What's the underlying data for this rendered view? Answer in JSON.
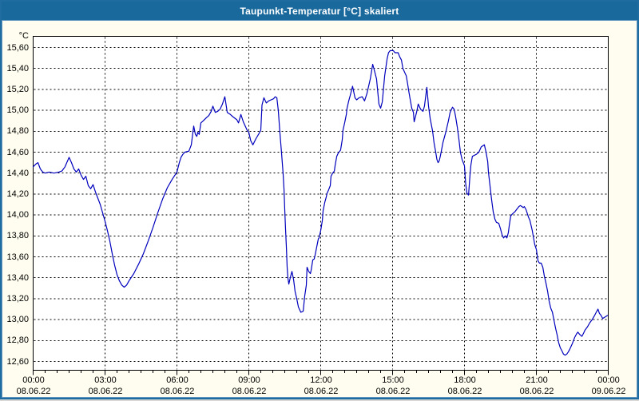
{
  "window": {
    "title": "Taupunkt-Temperatur [°C] skaliert"
  },
  "colors": {
    "titlebar": "#19699d",
    "title_text": "#ffffff",
    "frame": "#1f6da0",
    "background": "#fffdef",
    "plot_background": "#ffffff",
    "grid": "#000000",
    "line": "#0000bd"
  },
  "chart_data": {
    "type": "line",
    "title": "Taupunkt-Temperatur [°C] skaliert",
    "ylabel_unit": "°C",
    "ylim": [
      12.6,
      15.6
    ],
    "ytick_step": 0.2,
    "grid": "dashed",
    "legend": "none",
    "ytick_labels": [
      "15,60",
      "15,40",
      "15,20",
      "15,00",
      "14,80",
      "14,60",
      "14,40",
      "14,20",
      "14,00",
      "13,80",
      "13,60",
      "13,40",
      "13,20",
      "13,00",
      "12,80",
      "12,60"
    ],
    "x_axis": {
      "range_hours": [
        0,
        24
      ],
      "major_tick_hours": 3,
      "minor_tick_hours": 0.5
    },
    "xtick_labels": [
      {
        "hour": 0,
        "time": "00:00",
        "date": "08.06.22"
      },
      {
        "hour": 3,
        "time": "03:00",
        "date": "08.06.22"
      },
      {
        "hour": 6,
        "time": "06:00",
        "date": "08.06.22"
      },
      {
        "hour": 9,
        "time": "09:00",
        "date": "08.06.22"
      },
      {
        "hour": 12,
        "time": "12:00",
        "date": "08.06.22"
      },
      {
        "hour": 15,
        "time": "15:00",
        "date": "08.06.22"
      },
      {
        "hour": 18,
        "time": "18:00",
        "date": "08.06.22"
      },
      {
        "hour": 21,
        "time": "21:00",
        "date": "08.06.22"
      },
      {
        "hour": 24,
        "time": "00:00",
        "date": "09.06.22"
      }
    ],
    "series": [
      {
        "name": "Taupunkt-Temperatur",
        "points": [
          [
            0,
            14.46
          ],
          [
            0.13,
            14.49
          ],
          [
            0.2,
            14.5
          ],
          [
            0.3,
            14.44
          ],
          [
            0.4,
            14.41
          ],
          [
            0.5,
            14.4
          ],
          [
            0.67,
            14.41
          ],
          [
            0.87,
            14.4
          ],
          [
            1.07,
            14.41
          ],
          [
            1.2,
            14.42
          ],
          [
            1.33,
            14.46
          ],
          [
            1.5,
            14.55
          ],
          [
            1.6,
            14.5
          ],
          [
            1.7,
            14.44
          ],
          [
            1.8,
            14.41
          ],
          [
            1.9,
            14.44
          ],
          [
            2,
            14.38
          ],
          [
            2.1,
            14.34
          ],
          [
            2.2,
            14.37
          ],
          [
            2.3,
            14.28
          ],
          [
            2.4,
            14.25
          ],
          [
            2.5,
            14.29
          ],
          [
            2.6,
            14.22
          ],
          [
            2.7,
            14.16
          ],
          [
            2.8,
            14.1
          ],
          [
            2.9,
            14.02
          ],
          [
            3,
            13.94
          ],
          [
            3.1,
            13.85
          ],
          [
            3.2,
            13.75
          ],
          [
            3.3,
            13.63
          ],
          [
            3.4,
            13.52
          ],
          [
            3.5,
            13.43
          ],
          [
            3.6,
            13.37
          ],
          [
            3.7,
            13.33
          ],
          [
            3.8,
            13.31
          ],
          [
            3.9,
            13.33
          ],
          [
            4,
            13.37
          ],
          [
            4.2,
            13.44
          ],
          [
            4.4,
            13.53
          ],
          [
            4.6,
            13.63
          ],
          [
            4.8,
            13.75
          ],
          [
            5,
            13.88
          ],
          [
            5.2,
            14.02
          ],
          [
            5.4,
            14.15
          ],
          [
            5.6,
            14.26
          ],
          [
            5.8,
            14.34
          ],
          [
            6,
            14.41
          ],
          [
            6.1,
            14.5
          ],
          [
            6.17,
            14.55
          ],
          [
            6.25,
            14.58
          ],
          [
            6.33,
            14.6
          ],
          [
            6.5,
            14.61
          ],
          [
            6.6,
            14.67
          ],
          [
            6.7,
            14.85
          ],
          [
            6.77,
            14.77
          ],
          [
            6.83,
            14.75
          ],
          [
            6.87,
            14.79
          ],
          [
            6.93,
            14.77
          ],
          [
            7,
            14.88
          ],
          [
            7.1,
            14.9
          ],
          [
            7.23,
            14.93
          ],
          [
            7.33,
            14.95
          ],
          [
            7.43,
            14.99
          ],
          [
            7.5,
            15.04
          ],
          [
            7.6,
            14.98
          ],
          [
            7.7,
            14.99
          ],
          [
            7.8,
            15.01
          ],
          [
            7.9,
            15.06
          ],
          [
            8,
            15.13
          ],
          [
            8.1,
            14.98
          ],
          [
            8.23,
            14.96
          ],
          [
            8.33,
            14.94
          ],
          [
            8.5,
            14.91
          ],
          [
            8.57,
            14.88
          ],
          [
            8.67,
            14.96
          ],
          [
            8.77,
            14.89
          ],
          [
            8.93,
            14.81
          ],
          [
            9,
            14.79
          ],
          [
            9.08,
            14.71
          ],
          [
            9.17,
            14.67
          ],
          [
            9.3,
            14.73
          ],
          [
            9.43,
            14.78
          ],
          [
            9.5,
            14.81
          ],
          [
            9.55,
            15.05
          ],
          [
            9.63,
            15.12
          ],
          [
            9.73,
            15.07
          ],
          [
            9.83,
            15.09
          ],
          [
            9.93,
            15.1
          ],
          [
            10.03,
            15.11
          ],
          [
            10.1,
            15.13
          ],
          [
            10.17,
            15.12
          ],
          [
            10.23,
            15
          ],
          [
            10.3,
            14.78
          ],
          [
            10.37,
            14.58
          ],
          [
            10.43,
            14.4
          ],
          [
            10.47,
            14.24
          ],
          [
            10.5,
            14.05
          ],
          [
            10.53,
            13.88
          ],
          [
            10.57,
            13.68
          ],
          [
            10.6,
            13.5
          ],
          [
            10.63,
            13.4
          ],
          [
            10.67,
            13.34
          ],
          [
            10.73,
            13.4
          ],
          [
            10.8,
            13.46
          ],
          [
            10.87,
            13.38
          ],
          [
            10.93,
            13.27
          ],
          [
            11,
            13.2
          ],
          [
            11.07,
            13.12
          ],
          [
            11.17,
            13.07
          ],
          [
            11.27,
            13.08
          ],
          [
            11.33,
            13.22
          ],
          [
            11.4,
            13.33
          ],
          [
            11.43,
            13.5
          ],
          [
            11.5,
            13.46
          ],
          [
            11.57,
            13.44
          ],
          [
            11.6,
            13.47
          ],
          [
            11.67,
            13.57
          ],
          [
            11.73,
            13.58
          ],
          [
            11.77,
            13.62
          ],
          [
            11.83,
            13.69
          ],
          [
            11.9,
            13.77
          ],
          [
            11.93,
            13.78
          ],
          [
            12,
            13.85
          ],
          [
            12.07,
            13.95
          ],
          [
            12.1,
            14.04
          ],
          [
            12.17,
            14.12
          ],
          [
            12.23,
            14.17
          ],
          [
            12.27,
            14.21
          ],
          [
            12.33,
            14.24
          ],
          [
            12.4,
            14.28
          ],
          [
            12.43,
            14.37
          ],
          [
            12.5,
            14.4
          ],
          [
            12.57,
            14.42
          ],
          [
            12.6,
            14.47
          ],
          [
            12.67,
            14.56
          ],
          [
            12.73,
            14.59
          ],
          [
            12.83,
            14.62
          ],
          [
            12.9,
            14.72
          ],
          [
            12.93,
            14.81
          ],
          [
            13,
            14.88
          ],
          [
            13.07,
            14.96
          ],
          [
            13.1,
            15.02
          ],
          [
            13.17,
            15.09
          ],
          [
            13.23,
            15.14
          ],
          [
            13.33,
            15.23
          ],
          [
            13.43,
            15.12
          ],
          [
            13.5,
            15.1
          ],
          [
            13.6,
            15.12
          ],
          [
            13.73,
            15.13
          ],
          [
            13.83,
            15.09
          ],
          [
            13.93,
            15.16
          ],
          [
            14.07,
            15.3
          ],
          [
            14.17,
            15.44
          ],
          [
            14.23,
            15.39
          ],
          [
            14.33,
            15.3
          ],
          [
            14.43,
            15.06
          ],
          [
            14.5,
            15.02
          ],
          [
            14.57,
            15.08
          ],
          [
            14.67,
            15.33
          ],
          [
            14.77,
            15.49
          ],
          [
            14.83,
            15.55
          ],
          [
            14.9,
            15.57
          ],
          [
            15.03,
            15.57
          ],
          [
            15.1,
            15.55
          ],
          [
            15.23,
            15.55
          ],
          [
            15.3,
            15.51
          ],
          [
            15.37,
            15.48
          ],
          [
            15.43,
            15.4
          ],
          [
            15.57,
            15.33
          ],
          [
            15.63,
            15.25
          ],
          [
            15.67,
            15.19
          ],
          [
            15.73,
            15.11
          ],
          [
            15.8,
            15.02
          ],
          [
            15.87,
            14.98
          ],
          [
            15.9,
            14.89
          ],
          [
            16,
            14.98
          ],
          [
            16.07,
            15.06
          ],
          [
            16.13,
            15.03
          ],
          [
            16.17,
            15.01
          ],
          [
            16.27,
            14.99
          ],
          [
            16.33,
            15.04
          ],
          [
            16.43,
            15.22
          ],
          [
            16.5,
            15.04
          ],
          [
            16.57,
            14.92
          ],
          [
            16.67,
            14.8
          ],
          [
            16.73,
            14.69
          ],
          [
            16.8,
            14.6
          ],
          [
            16.85,
            14.53
          ],
          [
            16.9,
            14.5
          ],
          [
            16.95,
            14.52
          ],
          [
            17,
            14.57
          ],
          [
            17.1,
            14.69
          ],
          [
            17.23,
            14.8
          ],
          [
            17.33,
            14.9
          ],
          [
            17.4,
            14.98
          ],
          [
            17.5,
            15.03
          ],
          [
            17.57,
            15.01
          ],
          [
            17.63,
            14.94
          ],
          [
            17.7,
            14.84
          ],
          [
            17.77,
            14.72
          ],
          [
            17.83,
            14.6
          ],
          [
            17.9,
            14.53
          ],
          [
            18,
            14.47
          ],
          [
            18.05,
            14.3
          ],
          [
            18.1,
            14.21
          ],
          [
            18.17,
            14.19
          ],
          [
            18.23,
            14.38
          ],
          [
            18.27,
            14.48
          ],
          [
            18.33,
            14.56
          ],
          [
            18.5,
            14.58
          ],
          [
            18.6,
            14.6
          ],
          [
            18.7,
            14.65
          ],
          [
            18.83,
            14.67
          ],
          [
            18.9,
            14.6
          ],
          [
            18.97,
            14.51
          ],
          [
            19,
            14.41
          ],
          [
            19.07,
            14.27
          ],
          [
            19.13,
            14.15
          ],
          [
            19.2,
            14.03
          ],
          [
            19.27,
            13.96
          ],
          [
            19.33,
            13.93
          ],
          [
            19.43,
            13.92
          ],
          [
            19.5,
            13.87
          ],
          [
            19.57,
            13.81
          ],
          [
            19.63,
            13.78
          ],
          [
            19.7,
            13.8
          ],
          [
            19.77,
            13.78
          ],
          [
            19.83,
            13.83
          ],
          [
            19.87,
            13.9
          ],
          [
            19.93,
            13.99
          ],
          [
            20,
            14.01
          ],
          [
            20.1,
            14.03
          ],
          [
            20.17,
            14.05
          ],
          [
            20.27,
            14.08
          ],
          [
            20.33,
            14.09
          ],
          [
            20.4,
            14.08
          ],
          [
            20.45,
            14.07
          ],
          [
            20.5,
            14.08
          ],
          [
            20.57,
            14.05
          ],
          [
            20.67,
            13.98
          ],
          [
            20.73,
            13.95
          ],
          [
            20.83,
            13.85
          ],
          [
            20.93,
            13.72
          ],
          [
            21,
            13.67
          ],
          [
            21.07,
            13.56
          ],
          [
            21.13,
            13.54
          ],
          [
            21.2,
            13.54
          ],
          [
            21.27,
            13.5
          ],
          [
            21.33,
            13.42
          ],
          [
            21.4,
            13.35
          ],
          [
            21.47,
            13.27
          ],
          [
            21.53,
            13.18
          ],
          [
            21.6,
            13.11
          ],
          [
            21.67,
            13.07
          ],
          [
            21.73,
            13
          ],
          [
            21.8,
            12.92
          ],
          [
            21.87,
            12.85
          ],
          [
            21.93,
            12.78
          ],
          [
            22,
            12.73
          ],
          [
            22.07,
            12.7
          ],
          [
            22.13,
            12.67
          ],
          [
            22.2,
            12.66
          ],
          [
            22.27,
            12.67
          ],
          [
            22.33,
            12.69
          ],
          [
            22.4,
            12.72
          ],
          [
            22.5,
            12.77
          ],
          [
            22.6,
            12.83
          ],
          [
            22.67,
            12.86
          ],
          [
            22.73,
            12.88
          ],
          [
            22.8,
            12.86
          ],
          [
            22.9,
            12.84
          ],
          [
            22.97,
            12.87
          ],
          [
            23.03,
            12.9
          ],
          [
            23.13,
            12.93
          ],
          [
            23.23,
            12.97
          ],
          [
            23.33,
            13
          ],
          [
            23.43,
            13.04
          ],
          [
            23.5,
            13.07
          ],
          [
            23.57,
            13.1
          ],
          [
            23.63,
            13.06
          ],
          [
            23.7,
            13.04
          ],
          [
            23.77,
            13.01
          ],
          [
            23.83,
            13.02
          ],
          [
            23.9,
            13.03
          ],
          [
            23.97,
            13.04
          ]
        ]
      }
    ]
  }
}
